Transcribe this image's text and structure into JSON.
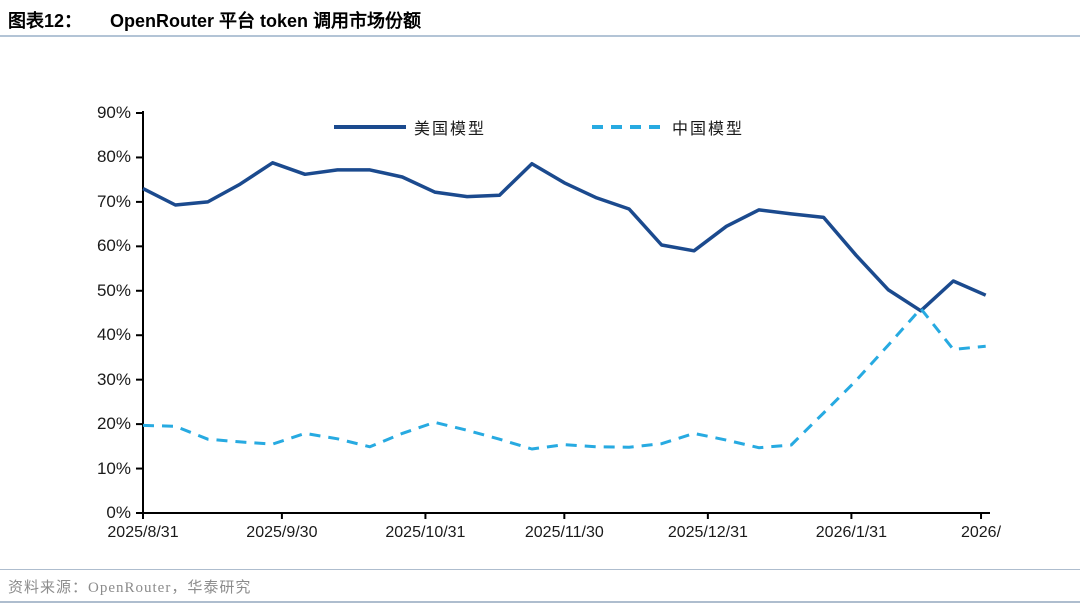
{
  "header": {
    "figure_label": "图表12：",
    "title": "OpenRouter 平台 token 调用市场份额"
  },
  "footer": {
    "source": "资料来源：OpenRouter，华泰研究"
  },
  "colors": {
    "us_line": "#1b4a8e",
    "china_line": "#27aae1",
    "axis": "#000000",
    "rule": "#b3c4d6"
  },
  "chart_data": {
    "type": "line",
    "title": "OpenRouter 平台 token 调用市场份额",
    "ylabel": "",
    "xlabel": "",
    "ylim": [
      0,
      90
    ],
    "y_step": 10,
    "y_tick_suffix": "%",
    "grid": false,
    "legend_position": "top",
    "x_tick_labels": [
      {
        "label": "2025/8/31",
        "day": 0
      },
      {
        "label": "2025/9/30",
        "day": 30
      },
      {
        "label": "2025/10/31",
        "day": 61
      },
      {
        "label": "2025/11/30",
        "day": 91
      },
      {
        "label": "2025/12/31",
        "day": 122
      },
      {
        "label": "2026/1/31",
        "day": 153
      },
      {
        "label": "2026/",
        "day": 181
      }
    ],
    "x_week_days": [
      0,
      7,
      14,
      21,
      28,
      35,
      42,
      49,
      56,
      63,
      70,
      77,
      84,
      91,
      98,
      105,
      112,
      119,
      126,
      133,
      140,
      147,
      154,
      161,
      168,
      175,
      182
    ],
    "series": [
      {
        "name": "美国模型",
        "color": "#1b4a8e",
        "style": "solid",
        "values": [
          73.0,
          69.3,
          70.0,
          74.0,
          78.8,
          76.2,
          77.2,
          77.2,
          75.6,
          72.2,
          71.2,
          71.5,
          78.6,
          74.3,
          70.9,
          68.4,
          60.3,
          59.0,
          64.5,
          68.2,
          67.3,
          66.5,
          58.0,
          50.2,
          45.5,
          52.2,
          49.0
        ]
      },
      {
        "name": "中国模型",
        "color": "#27aae1",
        "style": "dashed",
        "values": [
          19.7,
          19.5,
          16.6,
          16.0,
          15.5,
          17.9,
          16.7,
          14.9,
          17.9,
          20.4,
          18.6,
          16.6,
          14.4,
          15.4,
          14.9,
          14.8,
          15.6,
          17.9,
          16.4,
          14.7,
          15.3,
          22.5,
          29.8,
          37.8,
          46.0,
          36.8,
          37.5
        ]
      }
    ]
  }
}
